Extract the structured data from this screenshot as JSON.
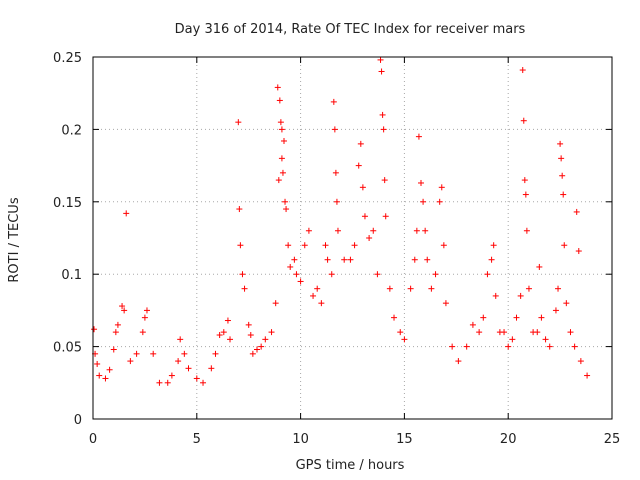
{
  "chart_data": {
    "type": "scatter",
    "title": "Day 316 of 2014, Rate Of TEC Index for receiver mars",
    "xlabel": "GPS time / hours",
    "ylabel": "ROTI / TECUs",
    "xlim": [
      0,
      25
    ],
    "ylim": [
      0,
      0.25
    ],
    "xticks": [
      0,
      5,
      10,
      15,
      20,
      25
    ],
    "yticks": [
      0,
      0.05,
      0.1,
      0.15,
      0.2,
      0.25
    ],
    "xtick_labels": [
      "0",
      "5",
      "10",
      "15",
      "20",
      "25"
    ],
    "ytick_labels": [
      "0",
      "0.05",
      "0.1",
      "0.15",
      "0.2",
      "0.25"
    ],
    "grid": true,
    "marker": "+",
    "color": "#ff0000",
    "series": [
      {
        "name": "ROTI",
        "points": [
          [
            0.05,
            0.062
          ],
          [
            0.1,
            0.045
          ],
          [
            0.2,
            0.038
          ],
          [
            0.3,
            0.03
          ],
          [
            0.6,
            0.028
          ],
          [
            0.8,
            0.034
          ],
          [
            1.0,
            0.048
          ],
          [
            1.1,
            0.06
          ],
          [
            1.2,
            0.065
          ],
          [
            1.4,
            0.078
          ],
          [
            1.5,
            0.075
          ],
          [
            1.6,
            0.142
          ],
          [
            1.8,
            0.04
          ],
          [
            2.1,
            0.045
          ],
          [
            2.4,
            0.06
          ],
          [
            2.5,
            0.07
          ],
          [
            2.6,
            0.075
          ],
          [
            2.9,
            0.045
          ],
          [
            3.2,
            0.025
          ],
          [
            3.6,
            0.025
          ],
          [
            3.8,
            0.03
          ],
          [
            4.1,
            0.04
          ],
          [
            4.2,
            0.055
          ],
          [
            4.4,
            0.045
          ],
          [
            4.6,
            0.035
          ],
          [
            5.0,
            0.028
          ],
          [
            5.3,
            0.025
          ],
          [
            5.7,
            0.035
          ],
          [
            5.9,
            0.045
          ],
          [
            6.1,
            0.058
          ],
          [
            6.3,
            0.06
          ],
          [
            6.5,
            0.068
          ],
          [
            6.6,
            0.055
          ],
          [
            7.0,
            0.205
          ],
          [
            7.05,
            0.145
          ],
          [
            7.1,
            0.12
          ],
          [
            7.2,
            0.1
          ],
          [
            7.3,
            0.09
          ],
          [
            7.5,
            0.065
          ],
          [
            7.6,
            0.058
          ],
          [
            7.7,
            0.045
          ],
          [
            7.9,
            0.048
          ],
          [
            8.1,
            0.05
          ],
          [
            8.3,
            0.055
          ],
          [
            8.6,
            0.06
          ],
          [
            8.8,
            0.08
          ],
          [
            8.9,
            0.229
          ],
          [
            9.0,
            0.22
          ],
          [
            9.05,
            0.205
          ],
          [
            9.1,
            0.2
          ],
          [
            9.2,
            0.192
          ],
          [
            9.25,
            0.15
          ],
          [
            9.3,
            0.145
          ],
          [
            9.1,
            0.18
          ],
          [
            9.15,
            0.17
          ],
          [
            8.95,
            0.165
          ],
          [
            9.4,
            0.12
          ],
          [
            9.5,
            0.105
          ],
          [
            9.7,
            0.11
          ],
          [
            9.8,
            0.1
          ],
          [
            10.0,
            0.095
          ],
          [
            10.2,
            0.12
          ],
          [
            10.4,
            0.13
          ],
          [
            10.6,
            0.085
          ],
          [
            10.8,
            0.09
          ],
          [
            11.0,
            0.08
          ],
          [
            11.2,
            0.12
          ],
          [
            11.3,
            0.11
          ],
          [
            11.5,
            0.1
          ],
          [
            11.6,
            0.219
          ],
          [
            11.65,
            0.2
          ],
          [
            11.7,
            0.17
          ],
          [
            11.75,
            0.15
          ],
          [
            11.8,
            0.13
          ],
          [
            12.1,
            0.11
          ],
          [
            12.4,
            0.11
          ],
          [
            12.6,
            0.12
          ],
          [
            12.8,
            0.175
          ],
          [
            12.9,
            0.19
          ],
          [
            13.0,
            0.16
          ],
          [
            13.1,
            0.14
          ],
          [
            13.3,
            0.125
          ],
          [
            13.5,
            0.13
          ],
          [
            13.7,
            0.1
          ],
          [
            13.85,
            0.248
          ],
          [
            13.9,
            0.24
          ],
          [
            13.95,
            0.21
          ],
          [
            14.0,
            0.2
          ],
          [
            14.05,
            0.165
          ],
          [
            14.1,
            0.14
          ],
          [
            14.3,
            0.09
          ],
          [
            14.5,
            0.07
          ],
          [
            14.8,
            0.06
          ],
          [
            15.0,
            0.055
          ],
          [
            15.3,
            0.09
          ],
          [
            15.5,
            0.11
          ],
          [
            15.6,
            0.13
          ],
          [
            15.7,
            0.195
          ],
          [
            15.8,
            0.163
          ],
          [
            15.9,
            0.15
          ],
          [
            16.0,
            0.13
          ],
          [
            16.1,
            0.11
          ],
          [
            16.3,
            0.09
          ],
          [
            16.5,
            0.1
          ],
          [
            16.7,
            0.15
          ],
          [
            16.8,
            0.16
          ],
          [
            16.9,
            0.12
          ],
          [
            17.0,
            0.08
          ],
          [
            17.3,
            0.05
          ],
          [
            17.6,
            0.04
          ],
          [
            18.0,
            0.05
          ],
          [
            18.3,
            0.065
          ],
          [
            18.6,
            0.06
          ],
          [
            18.8,
            0.07
          ],
          [
            19.0,
            0.1
          ],
          [
            19.2,
            0.11
          ],
          [
            19.3,
            0.12
          ],
          [
            19.4,
            0.085
          ],
          [
            19.6,
            0.06
          ],
          [
            19.8,
            0.06
          ],
          [
            20.0,
            0.05
          ],
          [
            20.2,
            0.055
          ],
          [
            20.4,
            0.07
          ],
          [
            20.6,
            0.085
          ],
          [
            20.7,
            0.241
          ],
          [
            20.75,
            0.206
          ],
          [
            20.8,
            0.165
          ],
          [
            20.85,
            0.155
          ],
          [
            20.9,
            0.13
          ],
          [
            21.0,
            0.09
          ],
          [
            21.2,
            0.06
          ],
          [
            21.4,
            0.06
          ],
          [
            21.5,
            0.105
          ],
          [
            21.6,
            0.07
          ],
          [
            21.8,
            0.055
          ],
          [
            22.0,
            0.05
          ],
          [
            22.3,
            0.075
          ],
          [
            22.4,
            0.09
          ],
          [
            22.5,
            0.19
          ],
          [
            22.55,
            0.18
          ],
          [
            22.6,
            0.168
          ],
          [
            22.65,
            0.155
          ],
          [
            22.7,
            0.12
          ],
          [
            22.8,
            0.08
          ],
          [
            23.0,
            0.06
          ],
          [
            23.2,
            0.05
          ],
          [
            23.3,
            0.143
          ],
          [
            23.4,
            0.116
          ],
          [
            23.5,
            0.04
          ],
          [
            23.8,
            0.03
          ]
        ]
      }
    ]
  }
}
